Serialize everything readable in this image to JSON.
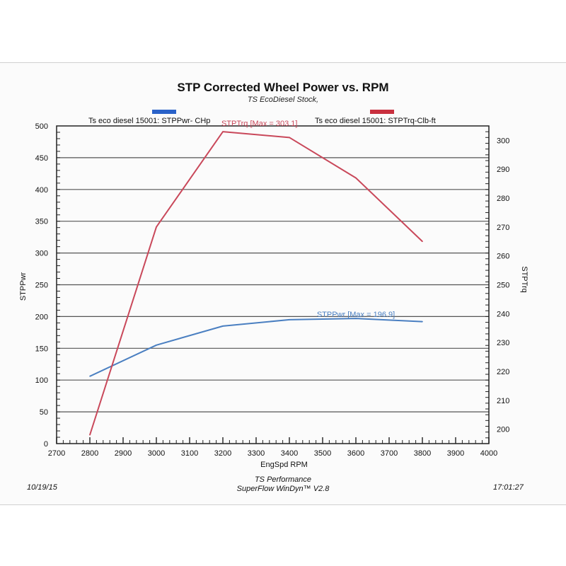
{
  "chart_data": {
    "type": "line",
    "title": "STP Corrected Wheel Power vs. RPM",
    "subtitle": "TS EcoDiesel Stock,",
    "xlabel": "EngSpd RPM",
    "ylabel_left": "STPPwr",
    "ylabel_right": "STPTrq",
    "xlim": [
      2700,
      4000
    ],
    "ylim_left": [
      0,
      500
    ],
    "ylim_right": [
      195,
      305
    ],
    "x_ticks": [
      2700,
      2800,
      2900,
      3000,
      3100,
      3200,
      3300,
      3400,
      3500,
      3600,
      3700,
      3800,
      3900,
      4000
    ],
    "y_ticks_left": [
      0,
      50,
      100,
      150,
      200,
      250,
      300,
      350,
      400,
      450,
      500
    ],
    "y_ticks_right": [
      200,
      210,
      220,
      230,
      240,
      250,
      260,
      270,
      280,
      290,
      300
    ],
    "grid": "horizontal",
    "series": [
      {
        "name": "Ts eco diesel 15001: STPPwr- CHp",
        "axis": "left",
        "color": "#4a7fc1",
        "x": [
          2800,
          3000,
          3200,
          3400,
          3600,
          3800
        ],
        "values": [
          106,
          155,
          185,
          195,
          197,
          192
        ],
        "annotation": "STPPwr [Max = 196.9]"
      },
      {
        "name": "Ts eco diesel 15001: STPTrq-Clb-ft",
        "axis": "right",
        "color": "#c9485a",
        "x": [
          2800,
          3000,
          3200,
          3400,
          3600,
          3800
        ],
        "values": [
          198,
          270,
          303,
          301,
          287,
          265
        ],
        "annotation": "STPTrq [Max = 303.1]"
      }
    ]
  },
  "legend": {
    "left_label": "Ts eco diesel 15001: STPPwr- CHp",
    "right_label": "Ts eco diesel 15001: STPTrq-Clb-ft",
    "left_color": "#2a62c9",
    "right_color": "#c9303f"
  },
  "footer": {
    "date": "10/19/15",
    "company": "TS Performance",
    "software": "SuperFlow WinDyn™ V2.8",
    "time": "17:01:27"
  }
}
